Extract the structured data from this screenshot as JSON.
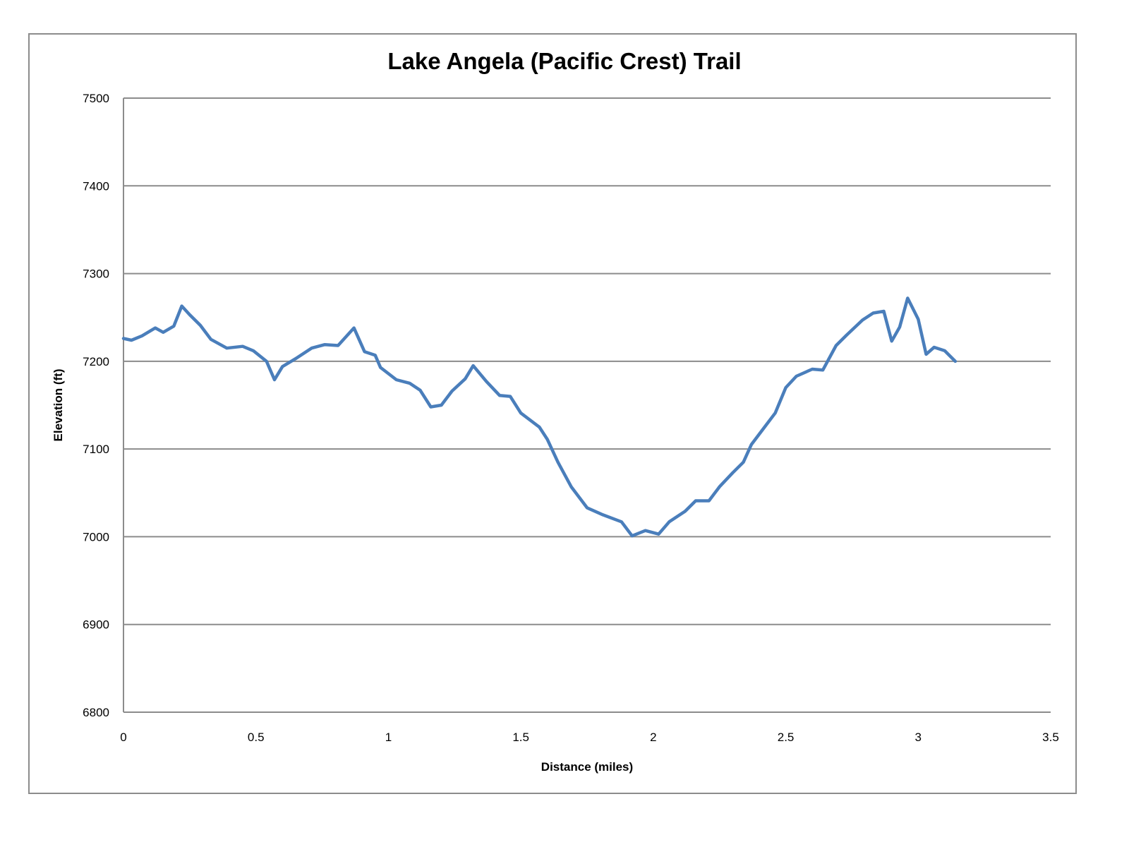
{
  "chart_data": {
    "type": "line",
    "title": "Lake Angela (Pacific Crest) Trail",
    "xlabel": "Distance (miles)",
    "ylabel": "Elevation (ft)",
    "xlim": [
      0,
      3.5
    ],
    "ylim": [
      6800,
      7500
    ],
    "x_ticks": [
      "0",
      "0.5",
      "1",
      "1.5",
      "2",
      "2.5",
      "3",
      "3.5"
    ],
    "y_ticks": [
      "6800",
      "6900",
      "7000",
      "7100",
      "7200",
      "7300",
      "7400",
      "7500"
    ],
    "grid": "horizontal",
    "legend": "none",
    "series_color": "#4a7ebb",
    "series": [
      {
        "name": "Elevation",
        "x": [
          0,
          0.03,
          0.07,
          0.12,
          0.15,
          0.19,
          0.22,
          0.25,
          0.29,
          0.33,
          0.39,
          0.45,
          0.49,
          0.54,
          0.57,
          0.6,
          0.65,
          0.71,
          0.76,
          0.81,
          0.87,
          0.91,
          0.95,
          0.97,
          1.03,
          1.08,
          1.12,
          1.16,
          1.2,
          1.24,
          1.29,
          1.32,
          1.37,
          1.42,
          1.46,
          1.5,
          1.57,
          1.6,
          1.64,
          1.69,
          1.75,
          1.81,
          1.88,
          1.92,
          1.97,
          2.02,
          2.06,
          2.12,
          2.16,
          2.21,
          2.25,
          2.3,
          2.34,
          2.37,
          2.42,
          2.46,
          2.5,
          2.54,
          2.6,
          2.64,
          2.69,
          2.73,
          2.79,
          2.83,
          2.87,
          2.9,
          2.93,
          2.96,
          3.0,
          3.03,
          3.06,
          3.1,
          3.14
        ],
        "y": [
          7226,
          7224,
          7229,
          7238,
          7233,
          7240,
          7263,
          7253,
          7241,
          7225,
          7215,
          7217,
          7212,
          7200,
          7179,
          7194,
          7203,
          7215,
          7219,
          7218,
          7238,
          7211,
          7207,
          7193,
          7179,
          7175,
          7167,
          7148,
          7150,
          7166,
          7180,
          7195,
          7177,
          7161,
          7160,
          7141,
          7125,
          7111,
          7085,
          7057,
          7033,
          7025,
          7017,
          7001,
          7007,
          7003,
          7017,
          7029,
          7041,
          7041,
          7057,
          7073,
          7085,
          7105,
          7125,
          7141,
          7170,
          7183,
          7191,
          7190,
          7218,
          7230,
          7247,
          7255,
          7257,
          7223,
          7239,
          7272,
          7248,
          7208,
          7216,
          7212,
          7200
        ]
      }
    ]
  },
  "chart": {
    "title": "Lake Angela (Pacific Crest) Trail",
    "xlabel": "Distance (miles)",
    "ylabel": "Elevation (ft)",
    "x_ticks": [
      "0",
      "0.5",
      "1",
      "1.5",
      "2",
      "2.5",
      "3",
      "3.5"
    ],
    "y_ticks": [
      "6800",
      "6900",
      "7000",
      "7100",
      "7200",
      "7300",
      "7400",
      "7500"
    ]
  }
}
